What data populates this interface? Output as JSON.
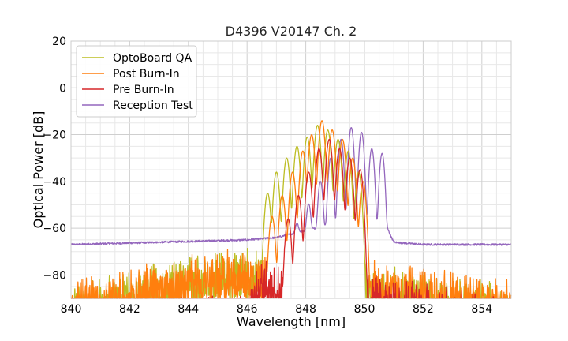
{
  "chart_data": {
    "type": "line",
    "title": "D4396 V20147 Ch. 2",
    "xlabel": "Wavelength [nm]",
    "ylabel": "Optical Power [dB]",
    "xlim": [
      840,
      855
    ],
    "ylim": [
      -90,
      20
    ],
    "xticks": [
      "840",
      "842",
      "844",
      "846",
      "848",
      "850",
      "852",
      "854"
    ],
    "yticks": [
      "20",
      "0",
      "−20",
      "−40",
      "−60",
      "−80"
    ],
    "grid": true,
    "legend_position": "top-left",
    "series": [
      {
        "name": "OptoBoard QA",
        "color": "#bcbd22",
        "peaks": [
          [
            846.7,
            -45
          ],
          [
            847.0,
            -36
          ],
          [
            847.35,
            -30
          ],
          [
            847.7,
            -25
          ],
          [
            848.05,
            -21
          ],
          [
            848.4,
            -16
          ],
          [
            848.75,
            -18
          ],
          [
            849.1,
            -22
          ],
          [
            849.45,
            -27
          ],
          [
            849.8,
            -36
          ]
        ],
        "noise_range": [
          [
            840.0,
            -84
          ],
          [
            844.6,
            -69
          ],
          [
            846.2,
            -68
          ],
          [
            850.0,
            -74
          ],
          [
            855.0,
            -83
          ]
        ]
      },
      {
        "name": "Post Burn-In",
        "color": "#ff7f0e",
        "peaks": [
          [
            846.85,
            -55
          ],
          [
            847.2,
            -46
          ],
          [
            847.55,
            -36
          ],
          [
            847.9,
            -27
          ],
          [
            848.2,
            -20
          ],
          [
            848.55,
            -14
          ],
          [
            848.9,
            -18
          ],
          [
            849.25,
            -22
          ],
          [
            849.6,
            -30
          ],
          [
            849.95,
            -40
          ]
        ],
        "noise_range": [
          [
            840.0,
            -82
          ],
          [
            844.6,
            -69
          ],
          [
            846.2,
            -68
          ],
          [
            850.0,
            -73
          ],
          [
            855.0,
            -81
          ]
        ]
      },
      {
        "name": "Pre Burn-In",
        "color": "#d62728",
        "peaks": [
          [
            847.4,
            -56
          ],
          [
            847.75,
            -46
          ],
          [
            848.1,
            -36
          ],
          [
            848.45,
            -26
          ],
          [
            848.8,
            -22
          ],
          [
            849.15,
            -26
          ],
          [
            849.5,
            -30
          ],
          [
            849.85,
            -35
          ]
        ],
        "noise_range": [
          [
            840.0,
            -90
          ],
          [
            846.0,
            -88
          ],
          [
            846.5,
            -72
          ],
          [
            850.0,
            -78
          ],
          [
            855.0,
            -90
          ]
        ]
      },
      {
        "name": "Reception Test",
        "color": "#9467bd",
        "peaks": [
          [
            847.7,
            -60
          ],
          [
            848.1,
            -50
          ],
          [
            848.5,
            -40
          ],
          [
            848.85,
            -30
          ],
          [
            849.2,
            -22
          ],
          [
            849.55,
            -17
          ],
          [
            849.9,
            -19
          ],
          [
            850.25,
            -26
          ],
          [
            850.6,
            -28
          ]
        ],
        "baseline": [
          [
            840.0,
            -67
          ],
          [
            846.0,
            -65
          ],
          [
            847.0,
            -64
          ],
          [
            848.0,
            -61
          ],
          [
            849.0,
            -58
          ],
          [
            850.7,
            -58
          ],
          [
            851.0,
            -66
          ],
          [
            852.0,
            -67
          ],
          [
            855.0,
            -67
          ]
        ]
      }
    ]
  }
}
